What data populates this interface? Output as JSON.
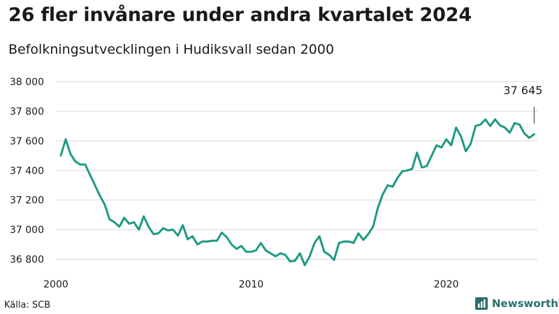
{
  "title": "26 fler invånare under andra kvartalet 2024",
  "subtitle": "Befolkningsutvecklingen i Hudiksvall sedan 2000",
  "source": "Källa: SCB",
  "brand": "Newsworthy",
  "colors": {
    "line": "#1e9a84",
    "grid": "#d9d9d9",
    "text": "#1a1a1a",
    "brand": "#2a6f6b"
  },
  "chart_data": {
    "type": "line",
    "title": "26 fler invånare under andra kvartalet 2024",
    "subtitle": "Befolkningsutvecklingen i Hudiksvall sedan 2000",
    "xlabel": "",
    "ylabel": "",
    "x_ticks": [
      "2000",
      "2010",
      "2020"
    ],
    "y_ticks": [
      "36 800",
      "37 000",
      "37 200",
      "37 400",
      "37 600",
      "37 800",
      "38 000"
    ],
    "y_tick_values": [
      36800,
      37000,
      37200,
      37400,
      37600,
      37800,
      38000
    ],
    "ylim": [
      36760,
      38000
    ],
    "xlim": [
      2000.0,
      2024.7
    ],
    "grid": "horizontal",
    "last_label": "37 645",
    "x": [
      2000.25,
      2000.5,
      2000.75,
      2001.0,
      2001.25,
      2001.5,
      2001.75,
      2002.0,
      2002.25,
      2002.5,
      2002.75,
      2003.0,
      2003.25,
      2003.5,
      2003.75,
      2004.0,
      2004.25,
      2004.5,
      2004.75,
      2005.0,
      2005.25,
      2005.5,
      2005.75,
      2006.0,
      2006.25,
      2006.5,
      2006.75,
      2007.0,
      2007.25,
      2007.5,
      2007.75,
      2008.0,
      2008.25,
      2008.5,
      2008.75,
      2009.0,
      2009.25,
      2009.5,
      2009.75,
      2010.0,
      2010.25,
      2010.5,
      2010.75,
      2011.0,
      2011.25,
      2011.5,
      2011.75,
      2012.0,
      2012.25,
      2012.5,
      2012.75,
      2013.0,
      2013.25,
      2013.5,
      2013.75,
      2014.0,
      2014.25,
      2014.5,
      2014.75,
      2015.0,
      2015.25,
      2015.5,
      2015.75,
      2016.0,
      2016.25,
      2016.5,
      2016.75,
      2017.0,
      2017.25,
      2017.5,
      2017.75,
      2018.0,
      2018.25,
      2018.5,
      2018.75,
      2019.0,
      2019.25,
      2019.5,
      2019.75,
      2020.0,
      2020.25,
      2020.5,
      2020.75,
      2021.0,
      2021.25,
      2021.5,
      2021.75,
      2022.0,
      2022.25,
      2022.5,
      2022.75,
      2023.0,
      2023.25,
      2023.5,
      2023.75,
      2024.0,
      2024.25,
      2024.5
    ],
    "series": [
      {
        "values": [
          37500,
          37610,
          37510,
          37460,
          37440,
          37440,
          37370,
          37300,
          37230,
          37170,
          37070,
          37050,
          37020,
          37080,
          37040,
          37050,
          37000,
          37090,
          37020,
          36970,
          36975,
          37010,
          36995,
          37000,
          36960,
          37030,
          36935,
          36955,
          36900,
          36920,
          36920,
          36925,
          36925,
          36980,
          36950,
          36900,
          36870,
          36890,
          36850,
          36850,
          36860,
          36910,
          36860,
          36840,
          36820,
          36840,
          36830,
          36785,
          36790,
          36840,
          36760,
          36820,
          36910,
          36955,
          36850,
          36830,
          36795,
          36910,
          36920,
          36920,
          36910,
          36975,
          36930,
          36970,
          37020,
          37150,
          37240,
          37300,
          37290,
          37350,
          37395,
          37400,
          37410,
          37520,
          37420,
          37430,
          37500,
          37570,
          37555,
          37610,
          37570,
          37690,
          37630,
          37530,
          37580,
          37700,
          37710,
          37745,
          37700,
          37745,
          37705,
          37690,
          37655,
          37720,
          37710,
          37650,
          37620,
          37645
        ]
      }
    ]
  }
}
